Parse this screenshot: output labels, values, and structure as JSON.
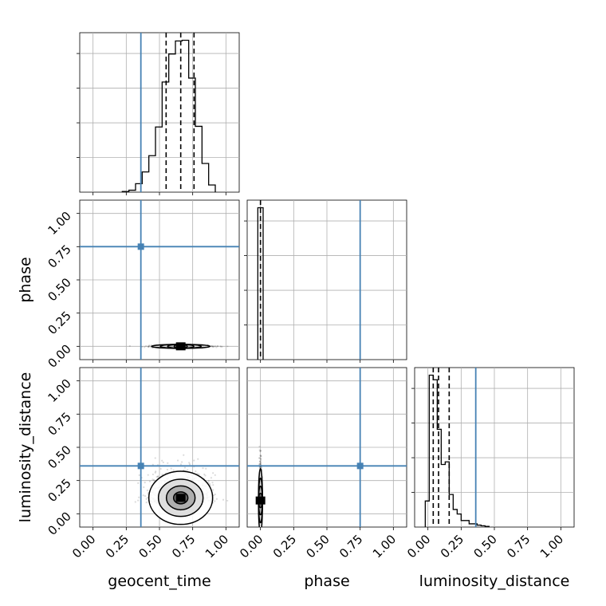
{
  "chart_data": {
    "type": "corner",
    "parameters": [
      "geocent_time",
      "phase",
      "luminosity_distance"
    ],
    "axis_labels": [
      "geocent_time",
      "phase",
      "luminosity_distance"
    ],
    "range": [
      -0.1,
      1.1
    ],
    "tick_values": [
      0.0,
      0.25,
      0.5,
      0.75,
      1.0
    ],
    "tick_labels": [
      "0.00",
      "0.25",
      "0.50",
      "0.75",
      "1.00"
    ],
    "grid": true,
    "truth_color": "#4682b4",
    "hist_color": "#000000",
    "truths": {
      "geocent_time": 0.36,
      "phase": 0.75,
      "luminosity_distance": 0.36
    },
    "quantiles": {
      "geocent_time": [
        0.55,
        0.66,
        0.76
      ],
      "phase": [
        0.0
      ],
      "luminosity_distance": [
        0.04,
        0.08,
        0.16
      ]
    },
    "histograms": {
      "geocent_time": {
        "bin_edges": [
          0.22,
          0.27,
          0.32,
          0.37,
          0.42,
          0.47,
          0.52,
          0.57,
          0.62,
          0.67,
          0.72,
          0.77,
          0.82,
          0.87,
          0.92
        ],
        "counts": [
          1,
          3,
          13,
          31,
          56,
          100,
          169,
          212,
          232,
          233,
          175,
          101,
          44,
          11
        ]
      },
      "phase": {
        "bin_edges": [
          -0.02,
          0.0,
          0.02
        ],
        "counts": [
          1.0,
          1.0
        ]
      },
      "luminosity_distance": {
        "bin_edges": [
          -0.02,
          0.01,
          0.04,
          0.07,
          0.1,
          0.13,
          0.16,
          0.19,
          0.22,
          0.25,
          0.28,
          0.31,
          0.34,
          0.37,
          0.4,
          0.43,
          0.46
        ],
        "counts": [
          40,
          233,
          226,
          150,
          96,
          100,
          50,
          27,
          20,
          10,
          10,
          5,
          5,
          3,
          2,
          1
        ]
      }
    }
  }
}
